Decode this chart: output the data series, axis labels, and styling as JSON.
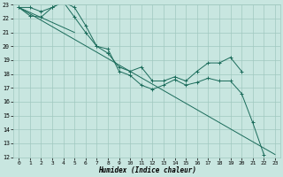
{
  "xlabel": "Humidex (Indice chaleur)",
  "xlim": [
    -0.5,
    23.5
  ],
  "ylim": [
    12,
    23
  ],
  "yticks": [
    12,
    13,
    14,
    15,
    16,
    17,
    18,
    19,
    20,
    21,
    22,
    23
  ],
  "xticks": [
    0,
    1,
    2,
    3,
    4,
    5,
    6,
    7,
    8,
    9,
    10,
    11,
    12,
    13,
    14,
    15,
    16,
    17,
    18,
    19,
    20,
    21,
    22,
    23
  ],
  "bg_color": "#c8e6e0",
  "grid_color": "#a0c8c0",
  "line_color": "#1a6b5a",
  "series": [
    {
      "x": [
        0,
        1,
        2,
        3,
        4,
        5,
        6,
        7,
        8,
        9,
        10,
        11,
        12,
        13,
        14,
        15,
        16,
        17,
        18,
        19,
        20,
        21,
        22,
        23
      ],
      "y": [
        22.8,
        22.2,
        22.1,
        22.8,
        23.2,
        22.8,
        21.5,
        20.0,
        19.8,
        18.2,
        17.9,
        17.2,
        16.9,
        17.2,
        17.6,
        17.2,
        17.4,
        17.7,
        17.5,
        17.5,
        16.6,
        14.5,
        12.2,
        null
      ],
      "marker": true
    },
    {
      "x": [
        0,
        1,
        2,
        3,
        4,
        5,
        6,
        7,
        8,
        9,
        10,
        11,
        12,
        13,
        14,
        15,
        16,
        17,
        18,
        19,
        20
      ],
      "y": [
        22.8,
        22.8,
        22.5,
        22.8,
        23.2,
        22.1,
        21.0,
        20.0,
        19.5,
        18.5,
        18.2,
        18.5,
        17.5,
        17.5,
        17.8,
        17.5,
        18.2,
        18.8,
        18.8,
        19.2,
        18.2
      ],
      "marker": true
    },
    {
      "x": [
        0,
        5
      ],
      "y": [
        22.8,
        21.0
      ],
      "marker": false
    },
    {
      "x": [
        0,
        23
      ],
      "y": [
        22.8,
        12.2
      ],
      "marker": false
    }
  ]
}
